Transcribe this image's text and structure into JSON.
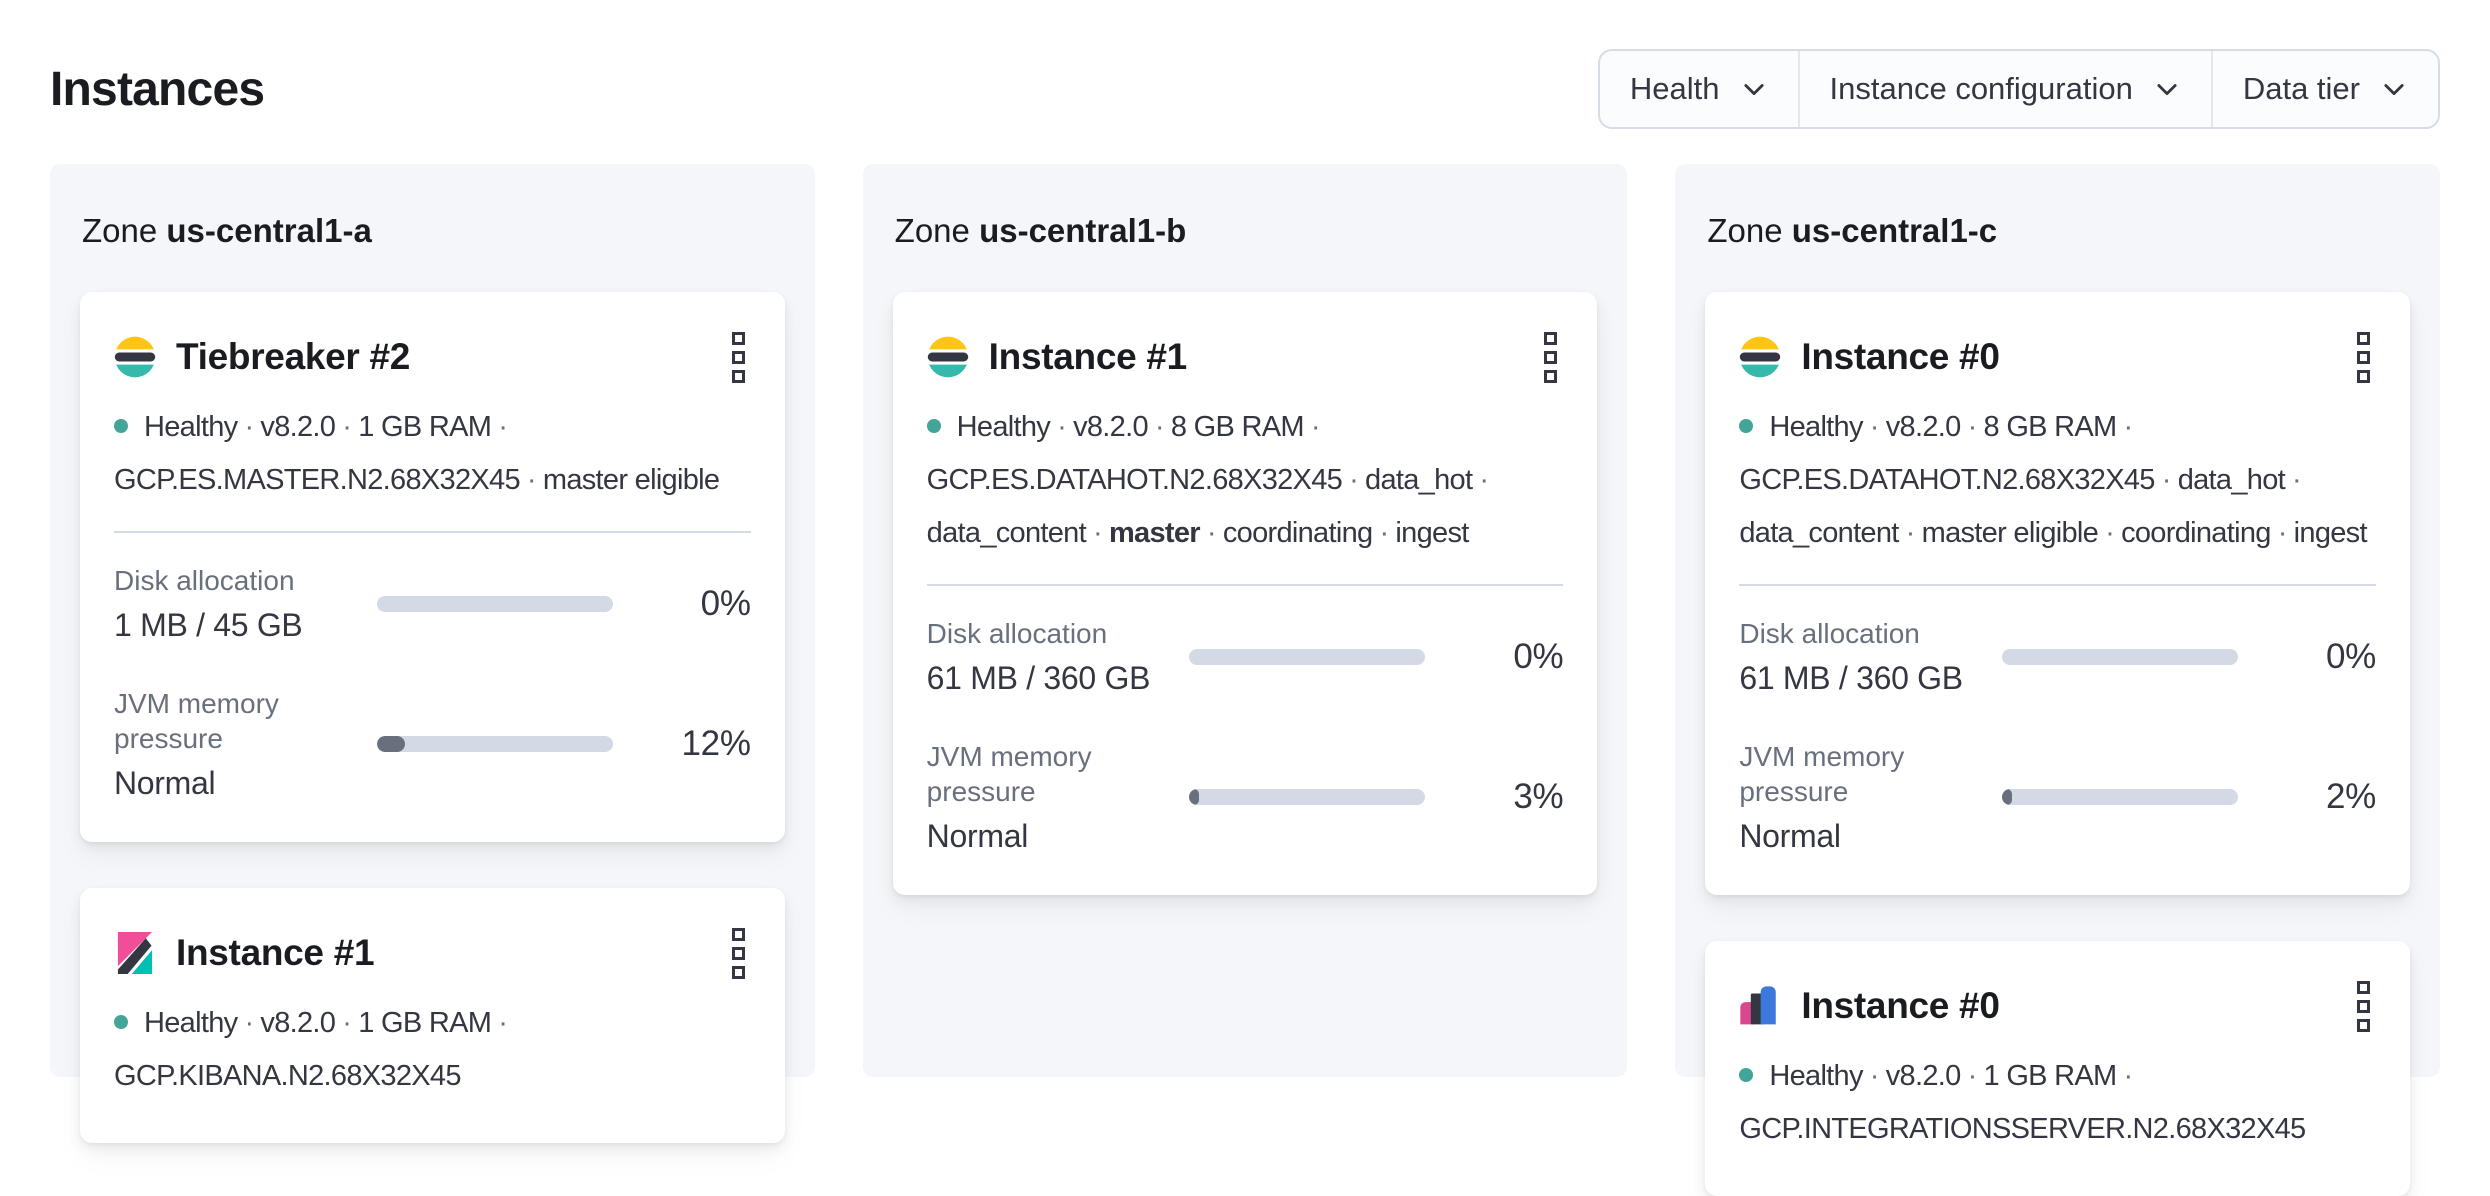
{
  "page": {
    "title": "Instances"
  },
  "filters": [
    {
      "label": "Health"
    },
    {
      "label": "Instance configuration"
    },
    {
      "label": "Data tier"
    }
  ],
  "colors": {
    "health_dot": "#42a598",
    "progress_track": "#d3dae6",
    "progress_fill": "#69707d",
    "panel_bg": "#f4f6fa"
  },
  "zones": [
    {
      "label": "Zone",
      "name": "us-central1-a",
      "cards": [
        {
          "logo": "elasticsearch-logo",
          "title": "Tiebreaker #2",
          "meta_lines": [
            {
              "health_dot": true,
              "trailing_separator": true,
              "parts": [
                {
                  "text": "Healthy"
                },
                {
                  "text": "v8.2.0"
                },
                {
                  "text": "1 GB RAM"
                }
              ]
            },
            {
              "health_dot": false,
              "trailing_separator": false,
              "parts": [
                {
                  "text": "GCP.ES.MASTER.N2.68X32X45"
                },
                {
                  "text": "master eligible"
                }
              ]
            }
          ],
          "metrics": [
            {
              "label": "Disk allocation",
              "value": "1 MB / 45 GB",
              "percent_label": "0%",
              "percent": 0
            },
            {
              "label": "JVM memory pressure",
              "value": "Normal",
              "percent_label": "12%",
              "percent": 12
            }
          ]
        },
        {
          "logo": "kibana-logo",
          "title": "Instance #1",
          "meta_lines": [
            {
              "health_dot": true,
              "trailing_separator": true,
              "parts": [
                {
                  "text": "Healthy"
                },
                {
                  "text": "v8.2.0"
                },
                {
                  "text": "1 GB RAM"
                }
              ]
            },
            {
              "health_dot": false,
              "trailing_separator": false,
              "parts": [
                {
                  "text": "GCP.KIBANA.N2.68X32X45"
                }
              ]
            }
          ],
          "metrics": []
        }
      ]
    },
    {
      "label": "Zone",
      "name": "us-central1-b",
      "cards": [
        {
          "logo": "elasticsearch-logo",
          "title": "Instance #1",
          "meta_lines": [
            {
              "health_dot": true,
              "trailing_separator": true,
              "parts": [
                {
                  "text": "Healthy"
                },
                {
                  "text": "v8.2.0"
                },
                {
                  "text": "8 GB RAM"
                }
              ]
            },
            {
              "health_dot": false,
              "trailing_separator": true,
              "parts": [
                {
                  "text": "GCP.ES.DATAHOT.N2.68X32X45"
                },
                {
                  "text": "data_hot"
                }
              ]
            },
            {
              "health_dot": false,
              "trailing_separator": false,
              "parts": [
                {
                  "text": "data_content"
                },
                {
                  "text": "master",
                  "bold": true
                },
                {
                  "text": "coordinating"
                },
                {
                  "text": "ingest"
                }
              ]
            }
          ],
          "metrics": [
            {
              "label": "Disk allocation",
              "value": "61 MB / 360 GB",
              "percent_label": "0%",
              "percent": 0
            },
            {
              "label": "JVM memory pressure",
              "value": "Normal",
              "percent_label": "3%",
              "percent": 3
            }
          ]
        }
      ]
    },
    {
      "label": "Zone",
      "name": "us-central1-c",
      "cards": [
        {
          "logo": "elasticsearch-logo",
          "title": "Instance #0",
          "meta_lines": [
            {
              "health_dot": true,
              "trailing_separator": true,
              "parts": [
                {
                  "text": "Healthy"
                },
                {
                  "text": "v8.2.0"
                },
                {
                  "text": "8 GB RAM"
                }
              ]
            },
            {
              "health_dot": false,
              "trailing_separator": true,
              "parts": [
                {
                  "text": "GCP.ES.DATAHOT.N2.68X32X45"
                },
                {
                  "text": "data_hot"
                }
              ]
            },
            {
              "health_dot": false,
              "trailing_separator": false,
              "parts": [
                {
                  "text": "data_content"
                },
                {
                  "text": "master eligible"
                },
                {
                  "text": "coordinating"
                },
                {
                  "text": "ingest"
                }
              ]
            }
          ],
          "metrics": [
            {
              "label": "Disk allocation",
              "value": "61 MB / 360 GB",
              "percent_label": "0%",
              "percent": 0
            },
            {
              "label": "JVM memory pressure",
              "value": "Normal",
              "percent_label": "2%",
              "percent": 2
            }
          ]
        },
        {
          "logo": "integrations-server-logo",
          "title": "Instance #0",
          "meta_lines": [
            {
              "health_dot": true,
              "trailing_separator": true,
              "parts": [
                {
                  "text": "Healthy"
                },
                {
                  "text": "v8.2.0"
                },
                {
                  "text": "1 GB RAM"
                }
              ]
            },
            {
              "health_dot": false,
              "trailing_separator": false,
              "parts": [
                {
                  "text": "GCP.INTEGRATIONSSERVER.N2.68X32X45"
                }
              ]
            }
          ],
          "metrics": []
        }
      ]
    }
  ]
}
